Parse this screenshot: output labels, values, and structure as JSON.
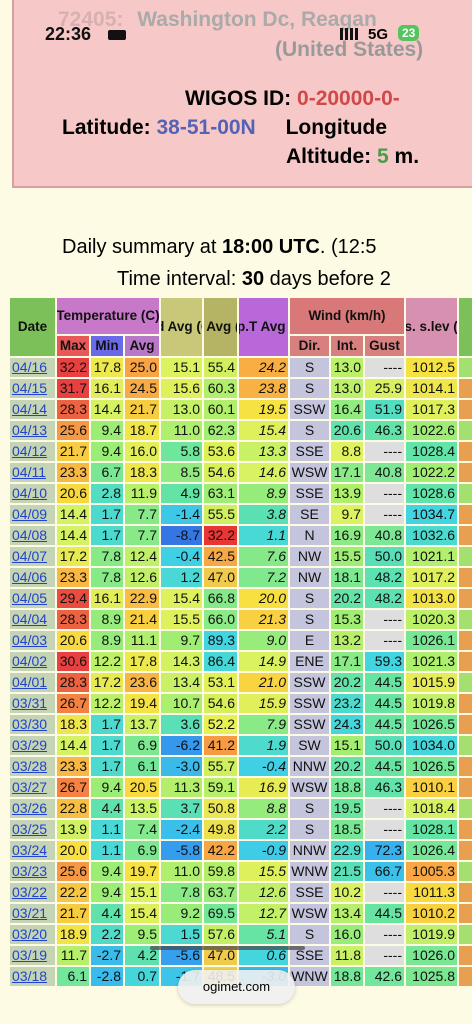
{
  "status": {
    "time": "22:36",
    "network": "5G",
    "battery": "23"
  },
  "header": {
    "station_id": "72405:",
    "station_name": "Washington Dc, Reagan",
    "country": "(United States)",
    "wigos_label": "WIGOS ID:",
    "wigos_value": "0-20000-0-",
    "lat_label": "Latitude:",
    "lat_value": "38-51-00N",
    "lon_label": "Longitude",
    "alt_label": "Altitude:",
    "alt_value": "5",
    "alt_unit": "m."
  },
  "summary": {
    "line1_a": "Daily summary at",
    "line1_b": "18:00 UTC",
    "line1_c": ". (12:5",
    "line2_a": "Time interval:",
    "line2_b": "30",
    "line2_c": "days before 2"
  },
  "table": {
    "group_headers": {
      "date": "Date",
      "temperature": "Temperature (C)",
      "td": "Td Avg (C)",
      "hr": "Hr. Avg (%)",
      "appt": "App.T Avg (C)",
      "wind": "Wind (km/h)",
      "pres": "Pres. s.lev (Hp)"
    },
    "sub_headers": {
      "max": "Max",
      "min": "Min",
      "avg": "Avg",
      "dir": "Dir.",
      "int": "Int.",
      "gust": "Gust"
    },
    "rows": [
      [
        "04/16",
        "32.2",
        "17.8",
        "25.0",
        "15.1",
        "55.4",
        "24.2",
        "S",
        "13.0",
        "----",
        "1012.5"
      ],
      [
        "04/15",
        "31.7",
        "16.1",
        "24.5",
        "15.6",
        "60.3",
        "23.8",
        "S",
        "13.0",
        "25.9",
        "1014.1"
      ],
      [
        "04/14",
        "28.3",
        "14.4",
        "21.7",
        "13.0",
        "60.1",
        "19.5",
        "SSW",
        "16.4",
        "51.9",
        "1017.3"
      ],
      [
        "04/13",
        "25.6",
        "9.4",
        "18.7",
        "11.0",
        "62.3",
        "15.4",
        "S",
        "20.6",
        "46.3",
        "1022.6"
      ],
      [
        "04/12",
        "21.7",
        "9.4",
        "16.0",
        "5.8",
        "53.6",
        "13.3",
        "SSE",
        "8.8",
        "----",
        "1028.4"
      ],
      [
        "04/11",
        "23.3",
        "6.7",
        "18.3",
        "8.5",
        "54.6",
        "14.6",
        "WSW",
        "17.1",
        "40.8",
        "1022.2"
      ],
      [
        "04/10",
        "20.6",
        "2.8",
        "11.9",
        "4.9",
        "63.1",
        "8.9",
        "SSE",
        "13.9",
        "----",
        "1028.6"
      ],
      [
        "04/09",
        "14.4",
        "1.7",
        "7.7",
        "-1.4",
        "55.5",
        "3.8",
        "SE",
        "9.7",
        "----",
        "1034.7"
      ],
      [
        "04/08",
        "14.4",
        "1.7",
        "7.7",
        "-8.7",
        "32.2",
        "1.1",
        "N",
        "16.9",
        "40.8",
        "1032.6"
      ],
      [
        "04/07",
        "17.2",
        "7.8",
        "12.4",
        "-0.4",
        "42.5",
        "7.6",
        "NW",
        "15.5",
        "50.0",
        "1021.1"
      ],
      [
        "04/06",
        "23.3",
        "7.8",
        "12.6",
        "1.2",
        "47.0",
        "7.2",
        "NW",
        "18.1",
        "48.2",
        "1017.2"
      ],
      [
        "04/05",
        "29.4",
        "16.1",
        "22.9",
        "15.4",
        "66.8",
        "20.0",
        "S",
        "20.2",
        "48.2",
        "1013.0"
      ],
      [
        "04/04",
        "28.3",
        "8.9",
        "21.4",
        "15.5",
        "66.0",
        "21.3",
        "S",
        "15.3",
        "----",
        "1020.3"
      ],
      [
        "04/03",
        "20.6",
        "8.9",
        "11.1",
        "9.7",
        "89.3",
        "9.0",
        "E",
        "13.2",
        "----",
        "1026.1"
      ],
      [
        "04/02",
        "30.6",
        "12.2",
        "17.8",
        "14.3",
        "86.4",
        "14.9",
        "ENE",
        "17.1",
        "59.3",
        "1021.3"
      ],
      [
        "04/01",
        "28.3",
        "17.2",
        "23.6",
        "13.4",
        "53.1",
        "21.0",
        "SSW",
        "20.2",
        "44.5",
        "1015.9"
      ],
      [
        "03/31",
        "26.7",
        "12.2",
        "19.4",
        "10.7",
        "54.6",
        "15.9",
        "SSW",
        "23.2",
        "44.5",
        "1019.8"
      ],
      [
        "03/30",
        "18.3",
        "1.7",
        "13.7",
        "3.6",
        "52.2",
        "7.9",
        "SSW",
        "24.3",
        "44.5",
        "1026.5"
      ],
      [
        "03/29",
        "14.4",
        "1.7",
        "6.9",
        "-6.2",
        "41.2",
        "1.9",
        "SW",
        "15.1",
        "50.0",
        "1034.0"
      ],
      [
        "03/28",
        "23.3",
        "1.7",
        "6.1",
        "-3.0",
        "55.7",
        "-0.4",
        "NNW",
        "20.2",
        "44.5",
        "1026.5"
      ],
      [
        "03/27",
        "26.7",
        "9.4",
        "20.5",
        "11.3",
        "59.1",
        "16.9",
        "WSW",
        "18.8",
        "46.3",
        "1010.1"
      ],
      [
        "03/26",
        "22.8",
        "4.4",
        "13.5",
        "3.7",
        "50.8",
        "8.8",
        "S",
        "19.5",
        "----",
        "1018.4"
      ],
      [
        "03/25",
        "13.9",
        "1.1",
        "7.4",
        "-2.4",
        "49.8",
        "2.2",
        "S",
        "18.5",
        "----",
        "1028.1"
      ],
      [
        "03/24",
        "20.0",
        "1.1",
        "6.9",
        "-5.8",
        "42.2",
        "-0.9",
        "NNW",
        "22.9",
        "72.3",
        "1026.4"
      ],
      [
        "03/23",
        "25.6",
        "9.4",
        "19.7",
        "11.0",
        "59.8",
        "15.5",
        "WNW",
        "21.5",
        "66.7",
        "1005.3"
      ],
      [
        "03/22",
        "22.2",
        "9.4",
        "15.1",
        "7.8",
        "63.7",
        "12.6",
        "SSE",
        "10.2",
        "----",
        "1011.3"
      ],
      [
        "03/21",
        "21.7",
        "4.4",
        "15.4",
        "9.2",
        "69.5",
        "12.7",
        "WSW",
        "13.4",
        "44.5",
        "1010.2"
      ],
      [
        "03/20",
        "18.9",
        "2.2",
        "9.5",
        "1.5",
        "57.6",
        "5.1",
        "S",
        "16.0",
        "----",
        "1019.9"
      ],
      [
        "03/19",
        "11.7",
        "-2.7",
        "4.2",
        "-5.6",
        "47.0",
        "0.6",
        "SSE",
        "11.8",
        "----",
        "1026.0"
      ],
      [
        "03/18",
        "6.1",
        "-2.8",
        "0.7",
        "-1.7",
        "48.5",
        "-3.0",
        "WNW",
        "18.8",
        "42.6",
        "1025.8"
      ]
    ]
  },
  "footer": {
    "url": "ogimet.com"
  }
}
